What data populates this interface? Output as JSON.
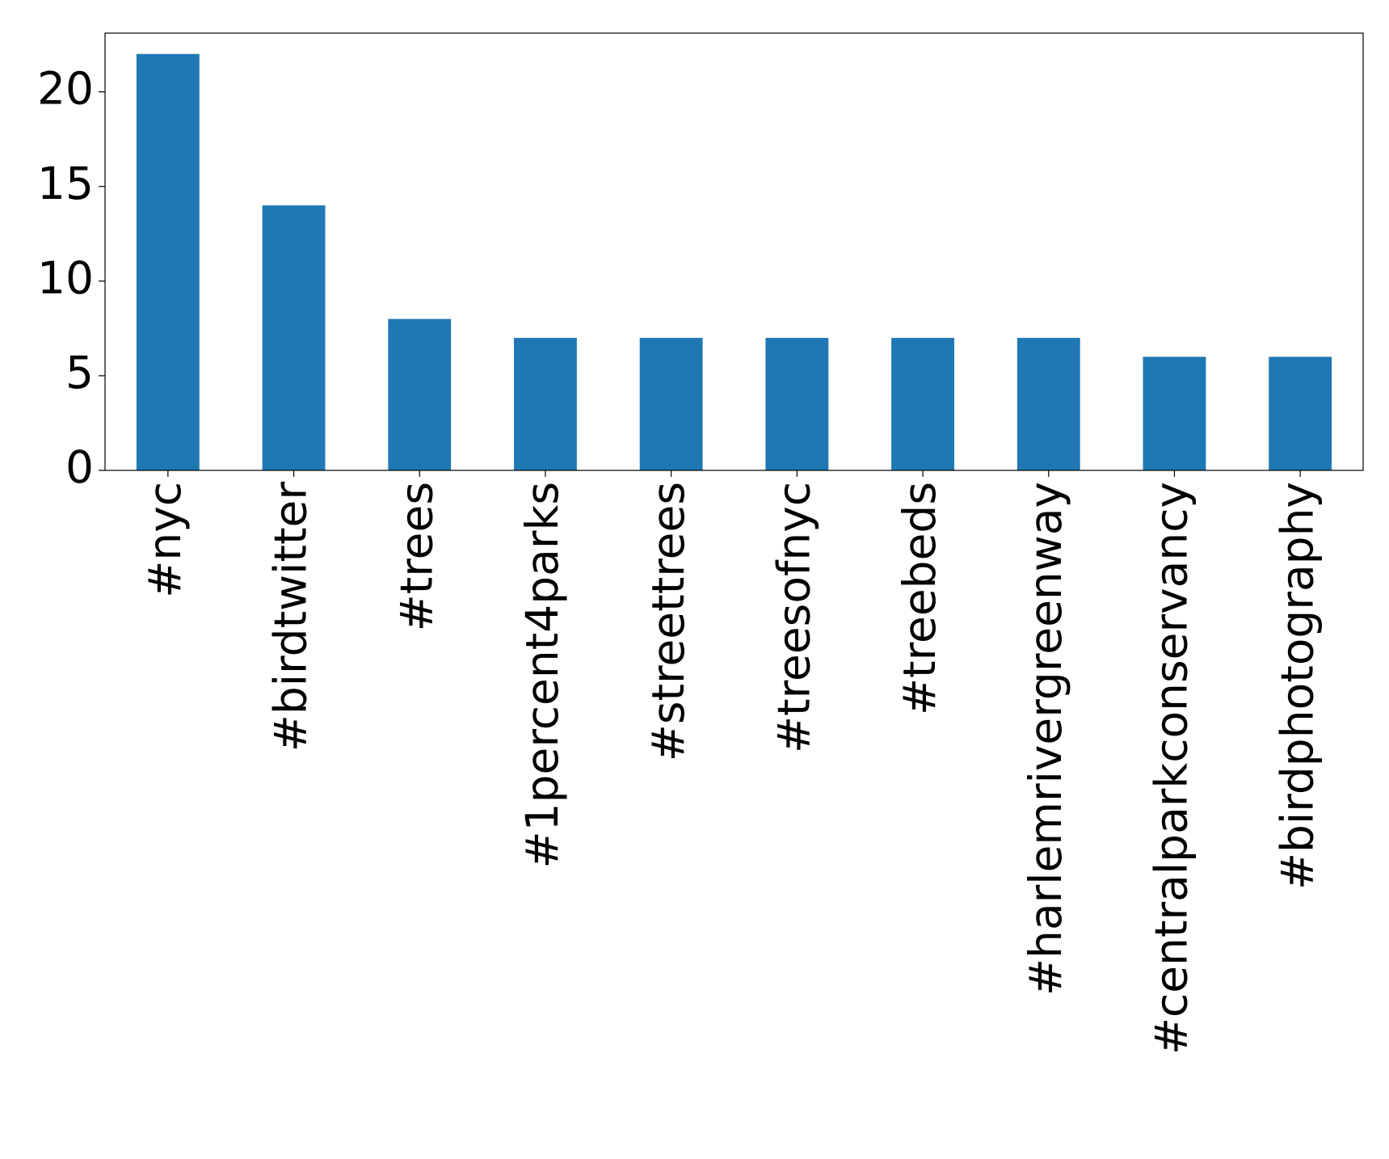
{
  "chart_data": {
    "type": "bar",
    "categories": [
      "#nyc",
      "#birdtwitter",
      "#trees",
      "#1percent4parks",
      "#streettrees",
      "#treesofnyc",
      "#treebeds",
      "#harlemrivergreenway",
      "#centralparkconservancy",
      "#birdphotography"
    ],
    "values": [
      22,
      14,
      8,
      7,
      7,
      7,
      7,
      7,
      6,
      6
    ],
    "color": "#1f77b4",
    "ylim": [
      0,
      23.1
    ],
    "yticks": [
      0,
      5,
      10,
      15,
      20
    ],
    "grid": false
  }
}
